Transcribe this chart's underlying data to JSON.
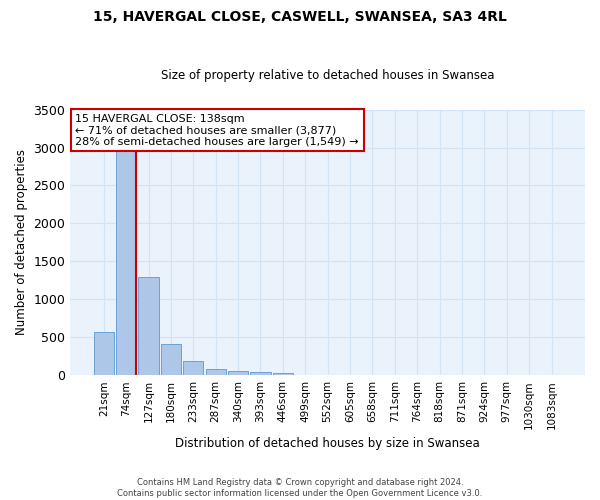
{
  "title1": "15, HAVERGAL CLOSE, CASWELL, SWANSEA, SA3 4RL",
  "title2": "Size of property relative to detached houses in Swansea",
  "xlabel": "Distribution of detached houses by size in Swansea",
  "ylabel": "Number of detached properties",
  "footer1": "Contains HM Land Registry data © Crown copyright and database right 2024.",
  "footer2": "Contains public sector information licensed under the Open Government Licence v3.0.",
  "bar_labels": [
    "21sqm",
    "74sqm",
    "127sqm",
    "180sqm",
    "233sqm",
    "287sqm",
    "340sqm",
    "393sqm",
    "446sqm",
    "499sqm",
    "552sqm",
    "605sqm",
    "658sqm",
    "711sqm",
    "764sqm",
    "818sqm",
    "871sqm",
    "924sqm",
    "977sqm",
    "1030sqm",
    "1083sqm"
  ],
  "bar_values": [
    570,
    2980,
    1300,
    415,
    185,
    80,
    50,
    40,
    35,
    0,
    0,
    0,
    0,
    0,
    0,
    0,
    0,
    0,
    0,
    0,
    0
  ],
  "bar_color": "#aec6e8",
  "bar_edge_color": "#5a9ad4",
  "grid_color": "#d0e4f5",
  "background_color": "#eaf2fc",
  "annotation_text": "15 HAVERGAL CLOSE: 138sqm\n← 71% of detached houses are smaller (3,877)\n28% of semi-detached houses are larger (1,549) →",
  "annotation_box_color": "#ffffff",
  "annotation_box_edge": "#cc0000",
  "ylim": [
    0,
    3500
  ],
  "yticks": [
    0,
    500,
    1000,
    1500,
    2000,
    2500,
    3000,
    3500
  ]
}
